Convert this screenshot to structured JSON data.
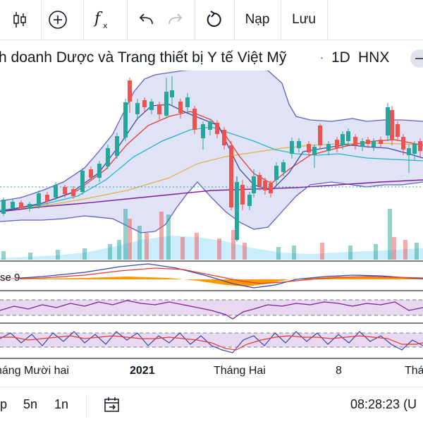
{
  "toolbar": {
    "reload_label": "Nạp",
    "save_label": "Lưu"
  },
  "header": {
    "symbol_name": "h doanh Dược và Trang thiết bị Y tế Việt Mỹ",
    "separator": "·",
    "interval": "1D",
    "exchange": "HNX"
  },
  "macd": {
    "label": "se 9"
  },
  "xaxis": {
    "labels": [
      "háng Mười hai",
      "2021",
      "Tháng Hai",
      "8",
      "Tháng"
    ]
  },
  "bottom_bar": {
    "range_partial": "p",
    "range_5y": "5n",
    "range_1y": "1n",
    "clock": "08:28:23 (U"
  },
  "colors": {
    "up": "#26a69a",
    "down": "#ef5350",
    "band_fill": "#d1d4f5",
    "band_line": "#5b5fc7",
    "macd_hist": "#ff9800"
  }
}
